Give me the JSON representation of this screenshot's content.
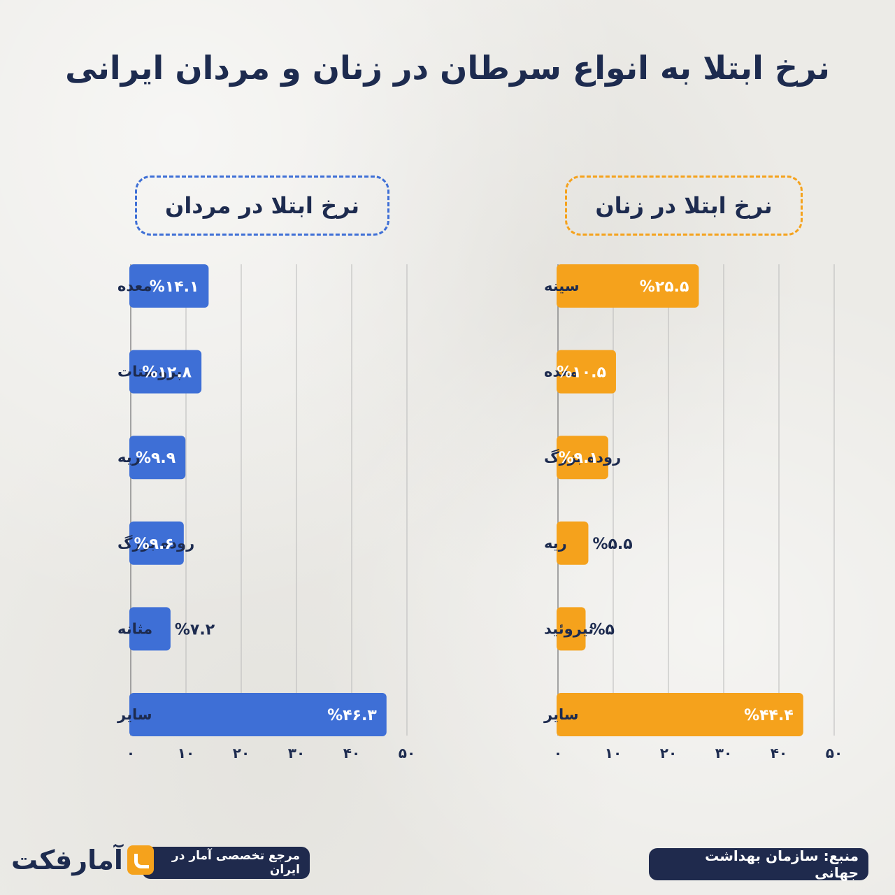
{
  "title": "نرخ ابتلا به انواع سرطان در زنان و مردان ایرانی",
  "colors": {
    "men": "#3e6fd6",
    "women": "#f5a21c",
    "text": "#1d2b4f",
    "grid": "#b9b9b9"
  },
  "chart_data": [
    {
      "type": "bar",
      "orientation": "horizontal",
      "title": "نرخ ابتلا در مردان",
      "categories": [
        "معده",
        "پروستات",
        "ریه",
        "روده بزرگ",
        "مثانه",
        "سایر"
      ],
      "values": [
        14.1,
        12.8,
        9.9,
        9.6,
        7.2,
        46.3
      ],
      "value_labels": [
        "%۱۴.۱",
        "%۱۲.۸",
        "%۹.۹",
        "%۹.۶",
        "%۷.۲",
        "%۴۶.۳"
      ],
      "xlim": [
        0,
        50
      ],
      "xticks": [
        0,
        10,
        20,
        30,
        40,
        50
      ],
      "xtick_labels": [
        "۰",
        "۱۰",
        "۲۰",
        "۳۰",
        "۴۰",
        "۵۰"
      ],
      "grid": true,
      "color": "#3e6fd6"
    },
    {
      "type": "bar",
      "orientation": "horizontal",
      "title": "نرخ ابتلا در زنان",
      "categories": [
        "سینه",
        "معده",
        "روده بزرگ",
        "ریه",
        "تیروئید",
        "سایر"
      ],
      "values": [
        25.5,
        10.5,
        9.1,
        5.5,
        5,
        44.4
      ],
      "value_labels": [
        "%۲۵.۵",
        "%۱۰.۵",
        "%۹.۱",
        "%۵.۵",
        "%۵",
        "%۴۴.۴"
      ],
      "xlim": [
        0,
        50
      ],
      "xticks": [
        0,
        10,
        20,
        30,
        40,
        50
      ],
      "xtick_labels": [
        "۰",
        "۱۰",
        "۲۰",
        "۳۰",
        "۴۰",
        "۵۰"
      ],
      "grid": true,
      "color": "#f5a21c"
    }
  ],
  "footer": {
    "source": "منبع: سازمان بهداشت جهانی",
    "tagline": "مرجع تخصصی آمار در ایران",
    "brand_name": "آمارفکت",
    "brand_icon": "brand-logo-icon"
  }
}
